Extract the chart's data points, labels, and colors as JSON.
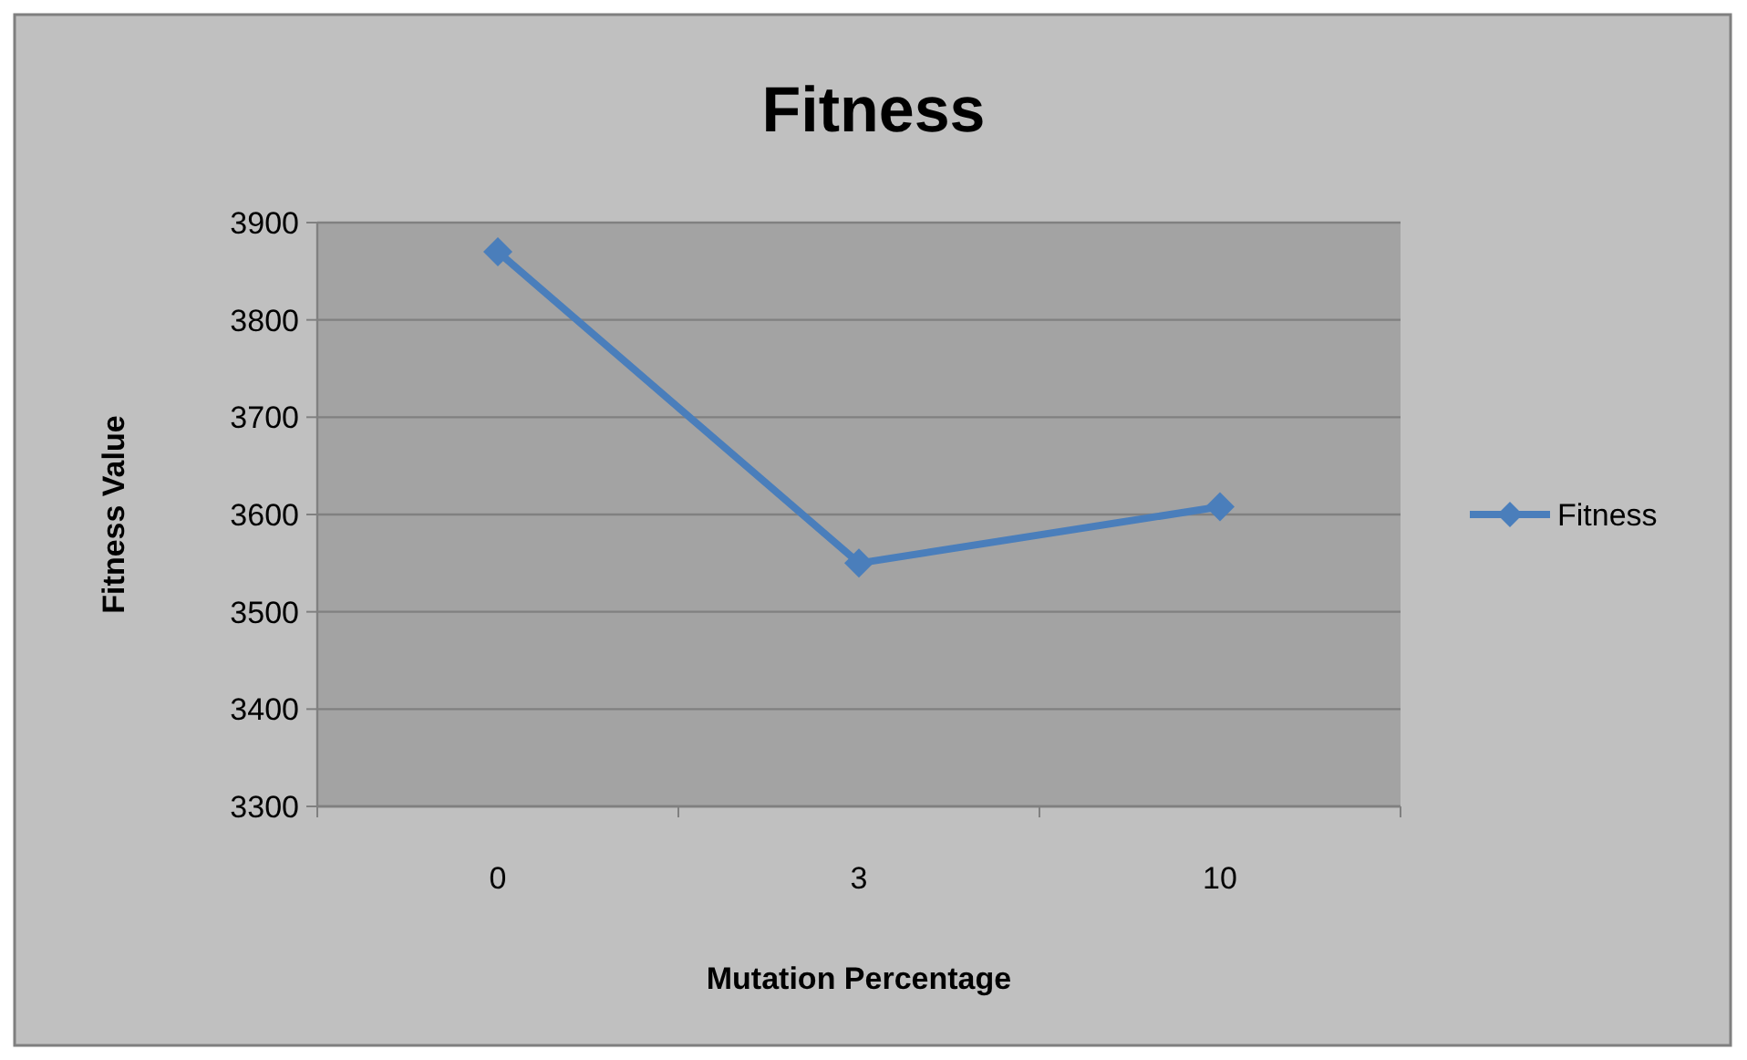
{
  "chart_data": {
    "type": "line",
    "title": "Fitness",
    "xlabel": "Mutation Percentage",
    "ylabel": "Fitness Value",
    "categories": [
      "0",
      "3",
      "10"
    ],
    "series": [
      {
        "name": "Fitness",
        "color": "#4a7ebb",
        "values": [
          3870,
          3550,
          3608
        ]
      }
    ],
    "ylim": [
      3300,
      3900
    ],
    "yticks": [
      3300,
      3400,
      3500,
      3600,
      3700,
      3800,
      3900
    ],
    "grid": "y",
    "legend": "right",
    "marker": "diamond",
    "line_style": "solid"
  }
}
